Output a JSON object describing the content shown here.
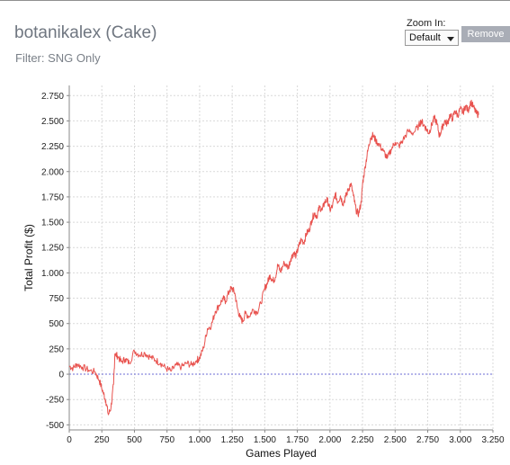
{
  "header": {
    "title": "botanikalex (Cake)",
    "filter": "Filter: SNG Only"
  },
  "zoom": {
    "label": "Zoom In:",
    "selected": "Default",
    "remove_label": "Remove"
  },
  "colors": {
    "series": "#e8524e",
    "zero_line": "#6b6bd6",
    "grid": "#d9d9d9",
    "remove_button": "#a9adb6"
  },
  "chart_data": {
    "type": "line",
    "xlabel": "Games Played",
    "ylabel": "Total Profit ($)",
    "xlim": [
      0,
      3250
    ],
    "ylim": [
      -550,
      2850
    ],
    "x_ticks": [
      0,
      250,
      500,
      750,
      1000,
      1250,
      1500,
      1750,
      2000,
      2250,
      2500,
      2750,
      3000,
      3250
    ],
    "x_tick_labels": [
      "0",
      "250",
      "500",
      "750",
      "1.000",
      "1.250",
      "1.500",
      "1.750",
      "2.000",
      "2.250",
      "2.500",
      "2.750",
      "3.000",
      "3.250"
    ],
    "y_ticks": [
      -500,
      -250,
      0,
      250,
      500,
      750,
      1000,
      1250,
      1500,
      1750,
      2000,
      2250,
      2500,
      2750
    ],
    "y_tick_labels": [
      "-500",
      "-250",
      "0",
      "250",
      "500",
      "750",
      "1.000",
      "1.250",
      "1.500",
      "1.750",
      "2.000",
      "2.250",
      "2.500",
      "2.750"
    ],
    "grid": true,
    "reference_line_y": 0,
    "series": [
      {
        "x": [
          0,
          30,
          60,
          100,
          150,
          200,
          230,
          260,
          280,
          300,
          320,
          340,
          350,
          370,
          400,
          430,
          460,
          500,
          540,
          580,
          620,
          660,
          700,
          740,
          780,
          820,
          860,
          900,
          940,
          980,
          1000,
          1030,
          1060,
          1090,
          1120,
          1150,
          1180,
          1200,
          1230,
          1250,
          1270,
          1290,
          1310,
          1330,
          1350,
          1380,
          1410,
          1440,
          1470,
          1500,
          1520,
          1540,
          1560,
          1580,
          1600,
          1620,
          1650,
          1680,
          1700,
          1720,
          1740,
          1760,
          1780,
          1800,
          1820,
          1840,
          1860,
          1880,
          1900,
          1920,
          1940,
          1960,
          1980,
          2000,
          2020,
          2040,
          2060,
          2080,
          2100,
          2120,
          2140,
          2160,
          2180,
          2200,
          2220,
          2240,
          2250,
          2270,
          2290,
          2310,
          2330,
          2350,
          2380,
          2410,
          2440,
          2470,
          2500,
          2530,
          2560,
          2600,
          2640,
          2680,
          2700,
          2720,
          2740,
          2760,
          2780,
          2800,
          2820,
          2840,
          2860,
          2880,
          2900,
          2920,
          2940,
          2960,
          2980,
          3000,
          3020,
          3040,
          3060,
          3080,
          3100,
          3120,
          3140
        ],
        "y": [
          80,
          60,
          100,
          70,
          40,
          20,
          -60,
          -180,
          -260,
          -400,
          -330,
          -100,
          200,
          180,
          120,
          150,
          110,
          230,
          190,
          210,
          170,
          140,
          110,
          60,
          30,
          90,
          70,
          110,
          90,
          140,
          160,
          260,
          450,
          480,
          620,
          680,
          750,
          720,
          830,
          850,
          800,
          650,
          560,
          520,
          600,
          570,
          640,
          610,
          700,
          850,
          900,
          980,
          920,
          950,
          1080,
          1010,
          1100,
          1050,
          1140,
          1200,
          1170,
          1260,
          1330,
          1300,
          1390,
          1420,
          1520,
          1590,
          1560,
          1650,
          1620,
          1700,
          1720,
          1620,
          1660,
          1780,
          1700,
          1760,
          1680,
          1750,
          1820,
          1880,
          1760,
          1620,
          1580,
          1700,
          1880,
          2050,
          2200,
          2330,
          2360,
          2310,
          2260,
          2200,
          2130,
          2220,
          2290,
          2250,
          2310,
          2400,
          2380,
          2450,
          2500,
          2460,
          2420,
          2380,
          2460,
          2530,
          2480,
          2350,
          2430,
          2500,
          2470,
          2560,
          2520,
          2600,
          2550,
          2620,
          2580,
          2650,
          2600,
          2690,
          2640,
          2580,
          2560
        ]
      }
    ]
  }
}
